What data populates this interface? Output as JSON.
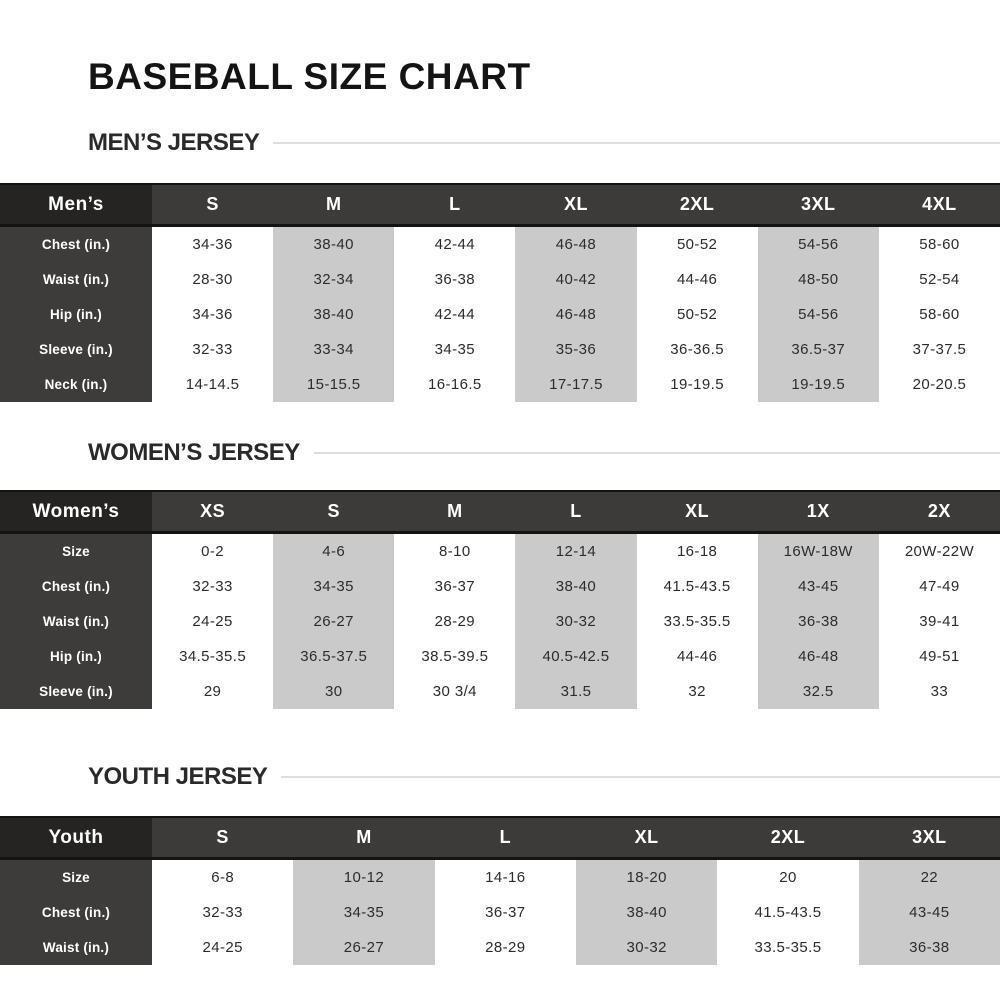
{
  "page": {
    "title": "BASEBALL SIZE CHART"
  },
  "colors": {
    "corner_header_bg": "#262323",
    "size_header_bg": "#3d3a3a",
    "row_label_bg": "#3e3b3b",
    "shaded_column_bg": "#cacaca",
    "heading_rule": "#dedede",
    "body_text": "#2e2b2b",
    "header_text": "#ffffff"
  },
  "sections": [
    {
      "id": "mens",
      "heading": "MEN’S JERSEY",
      "corner_label": "Men’s",
      "size_headers": [
        "S",
        "M",
        "L",
        "XL",
        "2XL",
        "3XL",
        "4XL"
      ],
      "shaded_columns": [
        1,
        3,
        5
      ],
      "rows": [
        {
          "label": "Chest (in.)",
          "values": [
            "34-36",
            "38-40",
            "42-44",
            "46-48",
            "50-52",
            "54-56",
            "58-60"
          ]
        },
        {
          "label": "Waist (in.)",
          "values": [
            "28-30",
            "32-34",
            "36-38",
            "40-42",
            "44-46",
            "48-50",
            "52-54"
          ]
        },
        {
          "label": "Hip (in.)",
          "values": [
            "34-36",
            "38-40",
            "42-44",
            "46-48",
            "50-52",
            "54-56",
            "58-60"
          ]
        },
        {
          "label": "Sleeve (in.)",
          "values": [
            "32-33",
            "33-34",
            "34-35",
            "35-36",
            "36-36.5",
            "36.5-37",
            "37-37.5"
          ]
        },
        {
          "label": "Neck (in.)",
          "values": [
            "14-14.5",
            "15-15.5",
            "16-16.5",
            "17-17.5",
            "19-19.5",
            "19-19.5",
            "20-20.5"
          ]
        }
      ]
    },
    {
      "id": "womens",
      "heading": "WOMEN’S JERSEY",
      "corner_label": "Women’s",
      "size_headers": [
        "XS",
        "S",
        "M",
        "L",
        "XL",
        "1X",
        "2X"
      ],
      "shaded_columns": [
        1,
        3,
        5
      ],
      "rows": [
        {
          "label": "Size",
          "values": [
            "0-2",
            "4-6",
            "8-10",
            "12-14",
            "16-18",
            "16W-18W",
            "20W-22W"
          ]
        },
        {
          "label": "Chest (in.)",
          "values": [
            "32-33",
            "34-35",
            "36-37",
            "38-40",
            "41.5-43.5",
            "43-45",
            "47-49"
          ]
        },
        {
          "label": "Waist (in.)",
          "values": [
            "24-25",
            "26-27",
            "28-29",
            "30-32",
            "33.5-35.5",
            "36-38",
            "39-41"
          ]
        },
        {
          "label": "Hip (in.)",
          "values": [
            "34.5-35.5",
            "36.5-37.5",
            "38.5-39.5",
            "40.5-42.5",
            "44-46",
            "46-48",
            "49-51"
          ]
        },
        {
          "label": "Sleeve (in.)",
          "values": [
            "29",
            "30",
            "30 3/4",
            "31.5",
            "32",
            "32.5",
            "33"
          ]
        }
      ]
    },
    {
      "id": "youth",
      "heading": "YOUTH JERSEY",
      "corner_label": "Youth",
      "size_headers": [
        "S",
        "M",
        "L",
        "XL",
        "2XL",
        "3XL"
      ],
      "shaded_columns": [
        1,
        3,
        5
      ],
      "rows": [
        {
          "label": "Size",
          "values": [
            "6-8",
            "10-12",
            "14-16",
            "18-20",
            "20",
            "22"
          ]
        },
        {
          "label": "Chest (in.)",
          "values": [
            "32-33",
            "34-35",
            "36-37",
            "38-40",
            "41.5-43.5",
            "43-45"
          ]
        },
        {
          "label": "Waist (in.)",
          "values": [
            "24-25",
            "26-27",
            "28-29",
            "30-32",
            "33.5-35.5",
            "36-38"
          ]
        }
      ]
    }
  ]
}
